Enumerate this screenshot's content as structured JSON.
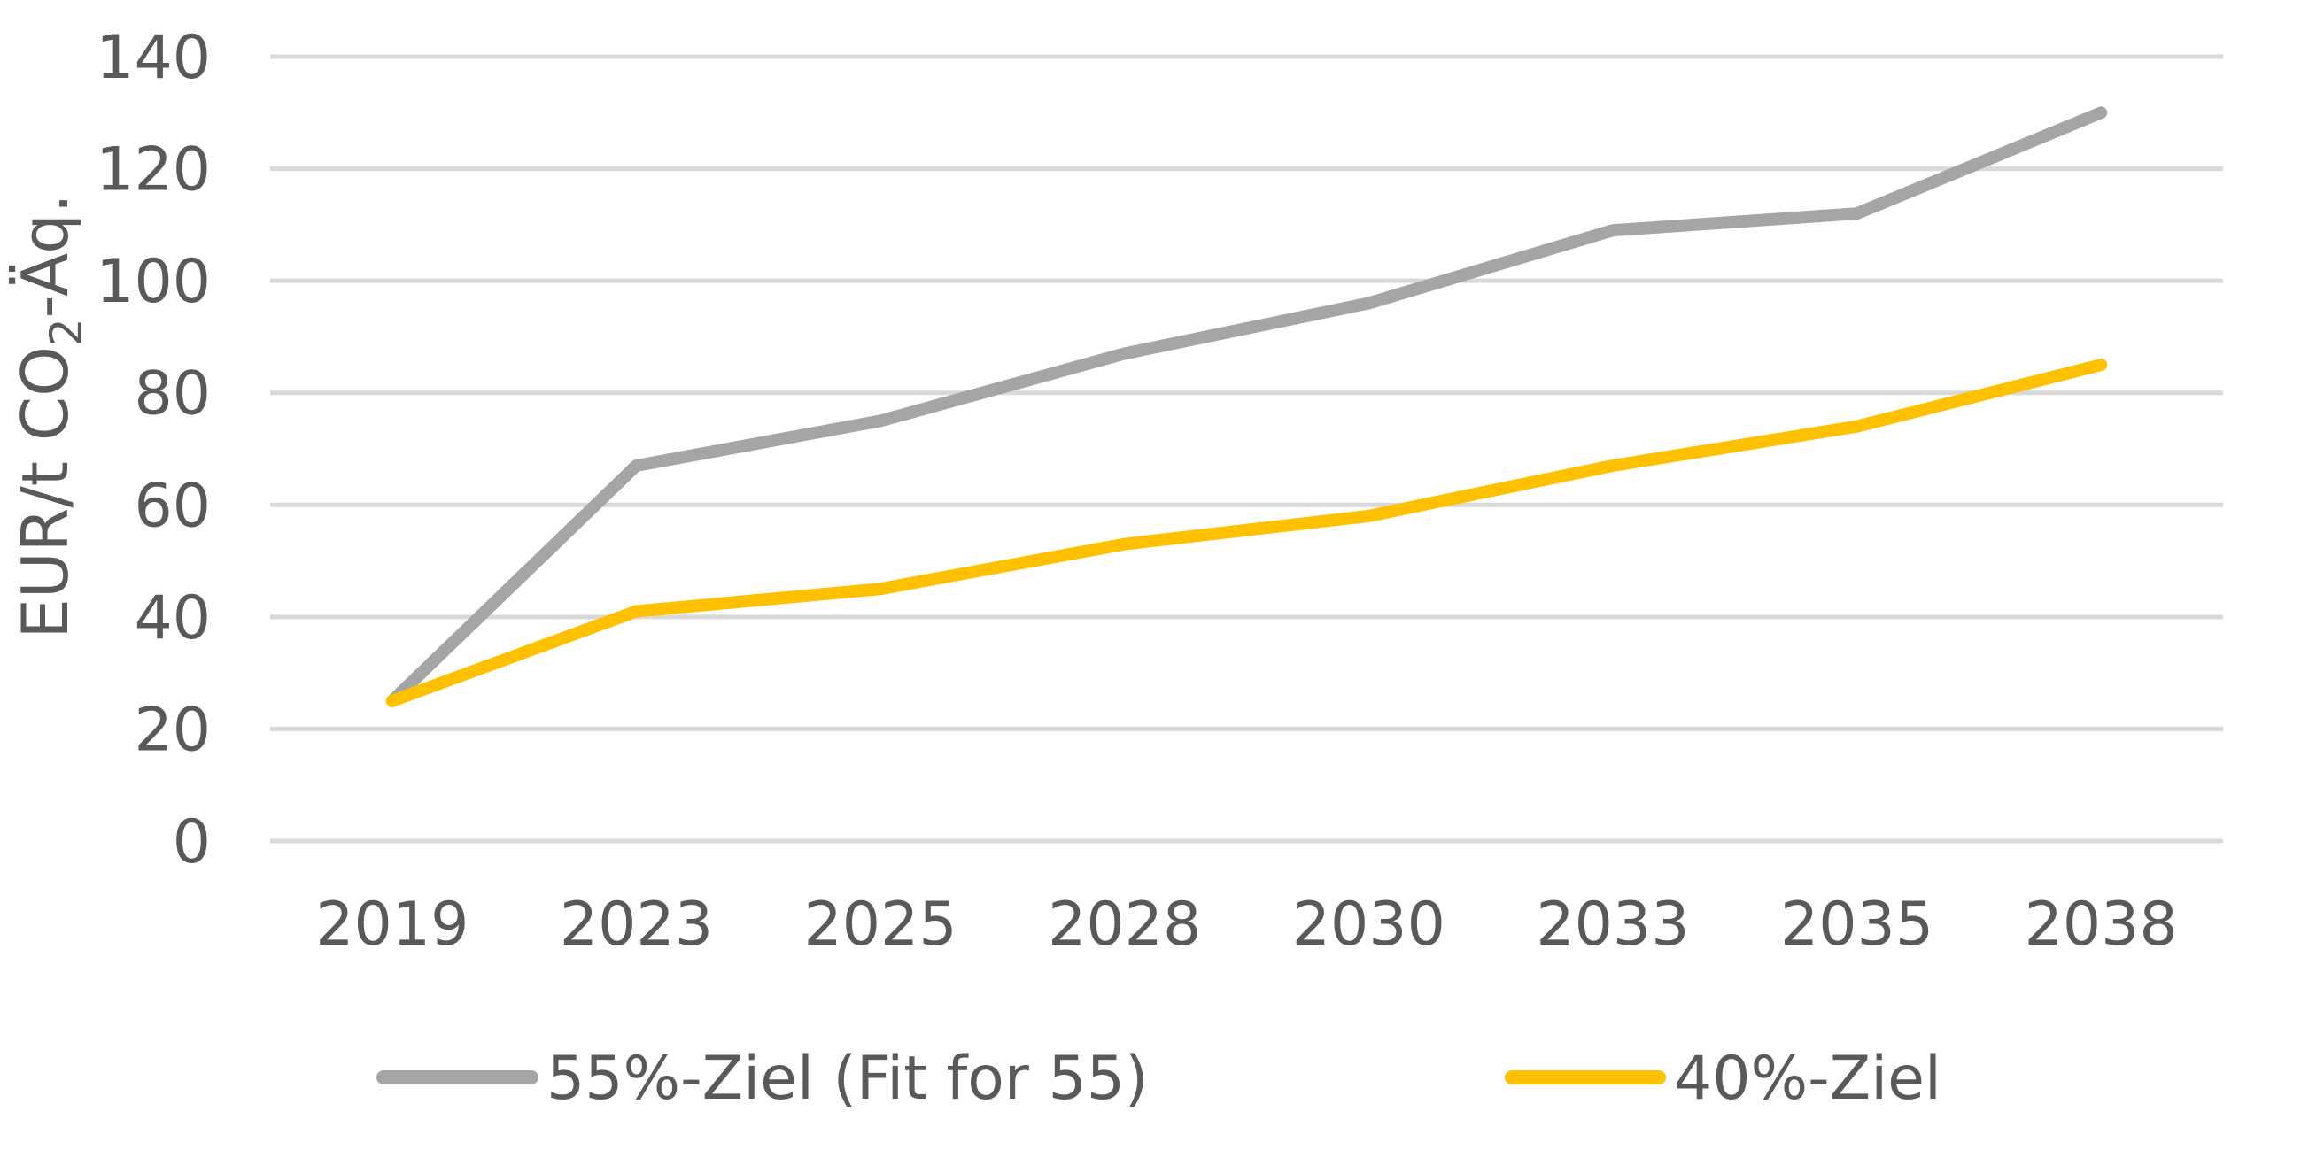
{
  "chart_data": {
    "type": "line",
    "categories": [
      "2019",
      "2023",
      "2025",
      "2028",
      "2030",
      "2033",
      "2035",
      "2038"
    ],
    "series": [
      {
        "name": "55%-Ziel (Fit for 55)",
        "values": [
          25,
          67,
          75,
          87,
          96,
          109,
          112,
          130
        ],
        "color": "#A5A5A5"
      },
      {
        "name": "40%-Ziel",
        "values": [
          25,
          41,
          45,
          53,
          58,
          67,
          74,
          85
        ],
        "color": "#FFC000"
      }
    ],
    "ylabel_main": "EUR/t CO",
    "ylabel_sub": "2",
    "ylabel_tail": "-Äq.",
    "ylim": [
      0,
      140
    ],
    "yticks": [
      0,
      20,
      40,
      60,
      80,
      100,
      120,
      140
    ],
    "grid": true,
    "legend_position": "bottom",
    "gridline_color": "#D9D9D9",
    "text_color": "#595959"
  }
}
